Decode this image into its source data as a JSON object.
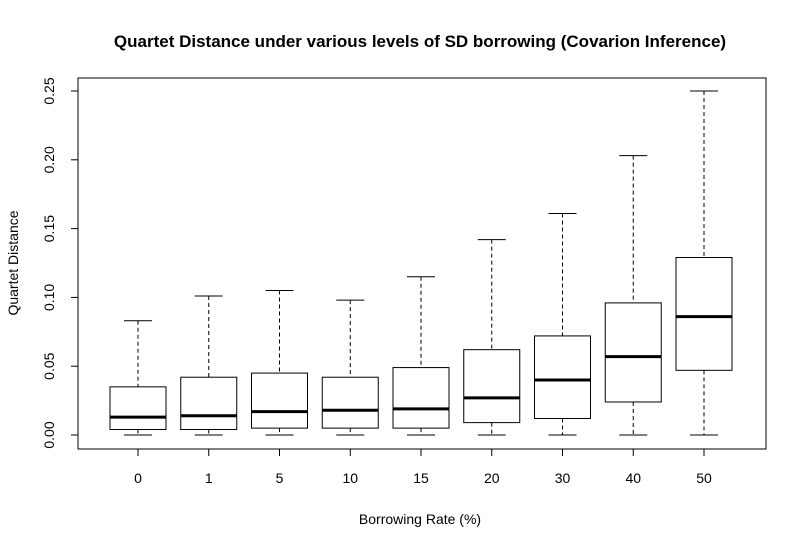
{
  "chart_data": {
    "type": "boxplot",
    "title": "Quartet Distance under various levels of SD borrowing (Covarion Inference)",
    "xlabel": "Borrowing Rate (%)",
    "ylabel": "Quartet Distance",
    "categories": [
      "0",
      "1",
      "5",
      "10",
      "15",
      "20",
      "30",
      "40",
      "50"
    ],
    "ylim": [
      -0.01,
      0.26
    ],
    "yticks": [
      0.0,
      0.05,
      0.1,
      0.15,
      0.2,
      0.25
    ],
    "ytick_labels": [
      "0.00",
      "0.05",
      "0.10",
      "0.15",
      "0.20",
      "0.25"
    ],
    "boxes": [
      {
        "min": 0.0,
        "q1": 0.004,
        "median": 0.013,
        "q3": 0.035,
        "max": 0.083
      },
      {
        "min": 0.0,
        "q1": 0.004,
        "median": 0.014,
        "q3": 0.042,
        "max": 0.101
      },
      {
        "min": 0.0,
        "q1": 0.005,
        "median": 0.017,
        "q3": 0.045,
        "max": 0.105
      },
      {
        "min": 0.0,
        "q1": 0.005,
        "median": 0.018,
        "q3": 0.042,
        "max": 0.098
      },
      {
        "min": 0.0,
        "q1": 0.005,
        "median": 0.019,
        "q3": 0.049,
        "max": 0.115
      },
      {
        "min": 0.0,
        "q1": 0.009,
        "median": 0.027,
        "q3": 0.062,
        "max": 0.142
      },
      {
        "min": 0.0,
        "q1": 0.012,
        "median": 0.04,
        "q3": 0.072,
        "max": 0.161
      },
      {
        "min": 0.0,
        "q1": 0.024,
        "median": 0.057,
        "q3": 0.096,
        "max": 0.203
      },
      {
        "min": 0.0,
        "q1": 0.047,
        "median": 0.086,
        "q3": 0.129,
        "max": 0.25
      }
    ],
    "colors": {
      "stroke": "#000000",
      "fill": "#ffffff",
      "background": "#ffffff"
    }
  }
}
